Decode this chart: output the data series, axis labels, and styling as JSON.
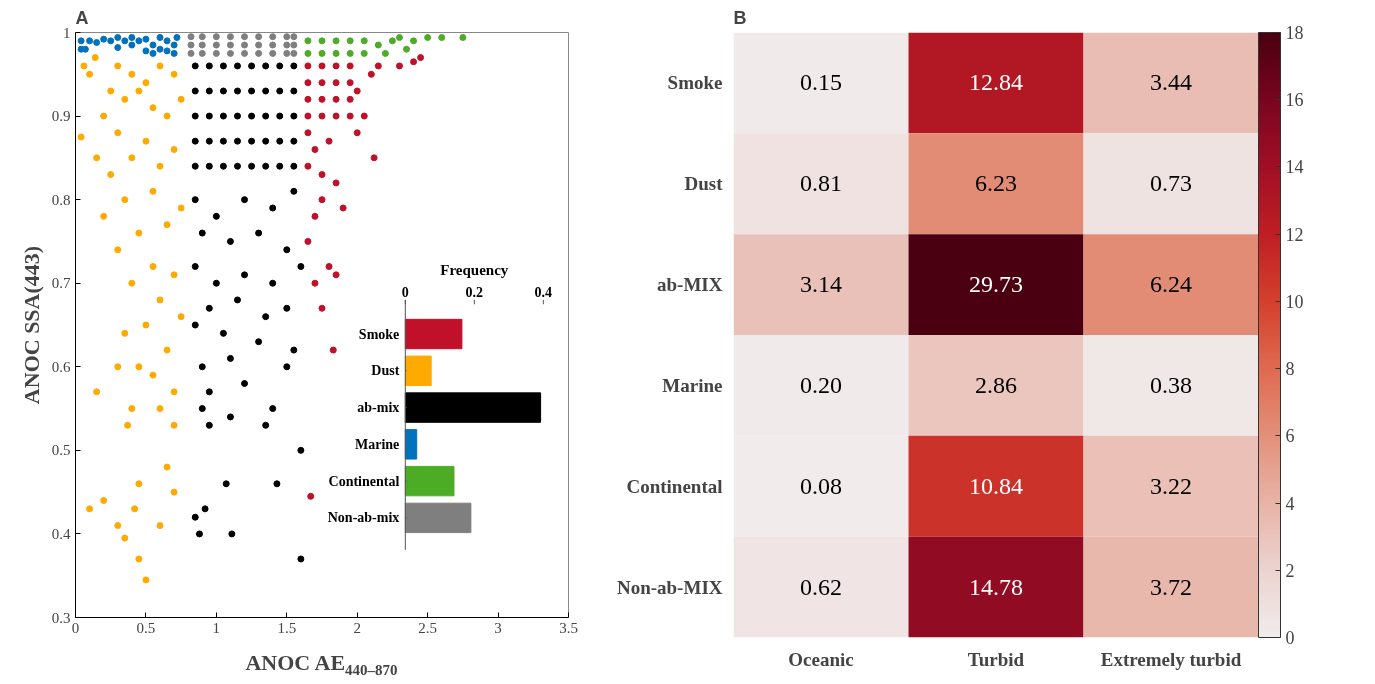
{
  "chart_data": [
    {
      "type": "scatter",
      "title": "A",
      "xlabel": "ANOC AE$_{440–870}$",
      "ylabel": "ANOC SSA(443)",
      "xlim": [
        0,
        3.5
      ],
      "ylim": [
        0.3,
        1
      ],
      "xticks": [
        0,
        0.5,
        1,
        1.5,
        2,
        2.5,
        3,
        3.5
      ],
      "yticks": [
        0.3,
        0.4,
        0.5,
        0.6,
        0.7,
        0.8,
        0.9,
        1
      ],
      "grid": false,
      "marker": "circle",
      "series": [
        {
          "color": "#0072bd",
          "x": [
            0.04,
            0.07,
            0.1,
            0.15,
            0.2,
            0.25,
            0.3,
            0.35,
            0.4,
            0.45,
            0.5,
            0.55,
            0.6,
            0.65,
            0.7,
            0.72,
            0.7,
            0.65,
            0.5,
            0.3,
            0.04,
            0.4,
            0.6,
            0.55
          ],
          "values": [
            0.99,
            0.98,
            0.99,
            0.988,
            0.992,
            0.99,
            0.994,
            0.99,
            0.985,
            0.99,
            0.992,
            0.985,
            0.994,
            0.99,
            0.985,
            0.994,
            0.975,
            0.978,
            0.978,
            0.982,
            0.98,
            0.994,
            0.98,
            0.975
          ]
        },
        {
          "color": "#7f7f7f",
          "x": [
            0.82,
            0.9,
            1.0,
            1.1,
            1.2,
            1.3,
            1.4,
            1.5,
            1.55,
            0.82,
            0.9,
            1.0,
            1.1,
            1.2,
            1.3,
            1.4,
            1.5,
            1.55,
            0.82,
            0.9,
            1.0,
            1.1,
            1.2,
            1.3,
            1.4,
            1.5,
            1.55
          ],
          "values": [
            0.975,
            0.975,
            0.975,
            0.975,
            0.975,
            0.975,
            0.975,
            0.975,
            0.975,
            0.985,
            0.985,
            0.985,
            0.985,
            0.985,
            0.985,
            0.985,
            0.985,
            0.985,
            0.995,
            0.995,
            0.995,
            0.995,
            0.995,
            0.995,
            0.995,
            0.995,
            0.995
          ]
        },
        {
          "color": "#4dac26",
          "x": [
            1.65,
            1.75,
            1.85,
            1.95,
            2.05,
            1.65,
            1.75,
            1.85,
            1.95,
            2.05,
            2.15,
            2.25,
            2.3,
            2.4,
            2.5,
            2.6,
            2.75,
            2.2,
            2.35
          ],
          "values": [
            0.975,
            0.975,
            0.975,
            0.975,
            0.975,
            0.99,
            0.99,
            0.99,
            0.99,
            0.99,
            0.985,
            0.99,
            0.994,
            0.99,
            0.994,
            0.994,
            0.994,
            0.975,
            0.98
          ]
        },
        {
          "color": "#c0102a",
          "x": [
            1.65,
            1.75,
            1.85,
            1.95,
            1.65,
            1.75,
            1.85,
            1.95,
            1.65,
            1.75,
            1.85,
            1.95,
            1.65,
            1.75,
            1.85,
            1.95,
            1.65,
            1.7,
            1.65,
            1.75,
            1.8,
            2.0,
            2.0,
            2.1,
            2.15,
            2.05,
            1.85,
            1.7,
            1.75,
            1.9,
            1.65,
            1.8,
            1.7,
            1.85,
            1.75,
            1.83,
            2.12,
            2.45,
            2.3,
            2.4,
            1.67
          ],
          "values": [
            0.96,
            0.96,
            0.96,
            0.96,
            0.94,
            0.94,
            0.94,
            0.94,
            0.92,
            0.92,
            0.92,
            0.92,
            0.9,
            0.9,
            0.9,
            0.9,
            0.88,
            0.86,
            0.84,
            0.83,
            0.87,
            0.88,
            0.93,
            0.95,
            0.96,
            0.9,
            0.82,
            0.78,
            0.8,
            0.79,
            0.75,
            0.72,
            0.7,
            0.71,
            0.67,
            0.62,
            0.85,
            0.97,
            0.96,
            0.965,
            0.445
          ]
        },
        {
          "color": "#ffaa00",
          "x": [
            0.3,
            0.4,
            0.5,
            0.6,
            0.7,
            0.75,
            0.65,
            0.55,
            0.45,
            0.35,
            0.25,
            0.2,
            0.3,
            0.5,
            0.7,
            0.6,
            0.4,
            0.25,
            0.15,
            0.35,
            0.55,
            0.75,
            0.65,
            0.45,
            0.3,
            0.2,
            0.55,
            0.7,
            0.4,
            0.6,
            0.5,
            0.75,
            0.35,
            0.65,
            0.45,
            0.3,
            0.55,
            0.7,
            0.4,
            0.6,
            0.15,
            0.37,
            0.7,
            0.65,
            0.45,
            0.7,
            0.42,
            0.1,
            0.2,
            0.3,
            0.6,
            0.35,
            0.45,
            0.5,
            0.04,
            0.1,
            0.14,
            0.06
          ],
          "values": [
            0.96,
            0.95,
            0.94,
            0.96,
            0.95,
            0.92,
            0.9,
            0.91,
            0.93,
            0.92,
            0.93,
            0.9,
            0.88,
            0.87,
            0.86,
            0.84,
            0.85,
            0.83,
            0.85,
            0.8,
            0.81,
            0.79,
            0.77,
            0.76,
            0.74,
            0.78,
            0.72,
            0.71,
            0.7,
            0.68,
            0.65,
            0.66,
            0.64,
            0.62,
            0.6,
            0.6,
            0.59,
            0.57,
            0.55,
            0.55,
            0.57,
            0.53,
            0.53,
            0.48,
            0.46,
            0.45,
            0.43,
            0.43,
            0.44,
            0.41,
            0.41,
            0.395,
            0.37,
            0.345,
            0.875,
            0.95,
            0.97,
            0.96
          ]
        },
        {
          "color": "#000000",
          "x": [
            0.85,
            0.95,
            1.05,
            1.15,
            1.25,
            1.35,
            1.45,
            1.55,
            0.85,
            0.95,
            1.05,
            1.15,
            1.25,
            1.35,
            1.45,
            1.55,
            0.85,
            0.95,
            1.05,
            1.15,
            1.25,
            1.35,
            1.45,
            1.55,
            0.85,
            0.95,
            1.05,
            1.15,
            1.25,
            1.35,
            1.45,
            1.55,
            0.85,
            0.95,
            1.05,
            1.15,
            1.25,
            1.35,
            1.45,
            1.55,
            0.85,
            1.0,
            1.2,
            1.4,
            1.55,
            0.9,
            1.1,
            1.3,
            1.5,
            0.85,
            1.0,
            1.2,
            1.4,
            1.6,
            0.95,
            1.15,
            1.35,
            1.5,
            0.85,
            1.05,
            1.3,
            1.55,
            0.9,
            1.1,
            1.5,
            1.2,
            0.95,
            1.4,
            1.1,
            0.9,
            1.35,
            0.95,
            1.6,
            1.07,
            1.43,
            0.85,
            0.92,
            0.88,
            1.11,
            1.6
          ],
          "values": [
            0.96,
            0.96,
            0.96,
            0.96,
            0.96,
            0.96,
            0.96,
            0.96,
            0.93,
            0.93,
            0.93,
            0.93,
            0.93,
            0.93,
            0.93,
            0.93,
            0.9,
            0.9,
            0.9,
            0.9,
            0.9,
            0.9,
            0.9,
            0.9,
            0.87,
            0.87,
            0.87,
            0.87,
            0.87,
            0.87,
            0.87,
            0.87,
            0.84,
            0.84,
            0.84,
            0.84,
            0.84,
            0.84,
            0.84,
            0.84,
            0.8,
            0.78,
            0.8,
            0.79,
            0.81,
            0.76,
            0.75,
            0.76,
            0.74,
            0.72,
            0.7,
            0.71,
            0.7,
            0.72,
            0.67,
            0.68,
            0.66,
            0.67,
            0.65,
            0.64,
            0.63,
            0.62,
            0.6,
            0.61,
            0.6,
            0.58,
            0.57,
            0.55,
            0.54,
            0.55,
            0.53,
            0.53,
            0.5,
            0.46,
            0.46,
            0.42,
            0.43,
            0.4,
            0.4,
            0.37
          ]
        }
      ]
    },
    {
      "type": "bar",
      "orientation": "horizontal",
      "xlabel": "Frequency",
      "xlim": [
        0,
        0.4
      ],
      "xticks": [
        0,
        0.2,
        0.4
      ],
      "categories": [
        "Smoke",
        "Dust",
        "ab-mix",
        "Marine",
        "Continental",
        "Non-ab-mix"
      ],
      "values": [
        0.164,
        0.075,
        0.392,
        0.033,
        0.141,
        0.19
      ],
      "colors": [
        "#c0102a",
        "#ffaa00",
        "#000000",
        "#0072bd",
        "#4dac26",
        "#7f7f7f"
      ]
    },
    {
      "type": "heatmap",
      "title": "B",
      "categories": [
        "Oceanic",
        "Turbid",
        "Extremely turbid"
      ],
      "y_categories": [
        "Smoke",
        "Dust",
        "ab-MIX",
        "Marine",
        "Continental",
        "Non-ab-MIX"
      ],
      "cells": [
        [
          0.15,
          12.84,
          3.44
        ],
        [
          0.81,
          6.23,
          0.73
        ],
        [
          3.14,
          29.73,
          6.24
        ],
        [
          0.2,
          2.86,
          0.38
        ],
        [
          0.08,
          10.84,
          3.22
        ],
        [
          0.62,
          14.78,
          3.72
        ]
      ],
      "cell_labels": [
        [
          "0.15",
          "12.84",
          "3.44"
        ],
        [
          "0.81",
          "6.23",
          "0.73"
        ],
        [
          "3.14",
          "29.73",
          "6.24"
        ],
        [
          "0.20",
          "2.86",
          "0.38"
        ],
        [
          "0.08",
          "10.84",
          "3.22"
        ],
        [
          "0.62",
          "14.78",
          "3.72"
        ]
      ],
      "clim": [
        0,
        18
      ],
      "cticks": [
        0,
        2,
        4,
        6,
        8,
        10,
        12,
        14,
        16,
        18
      ]
    }
  ]
}
